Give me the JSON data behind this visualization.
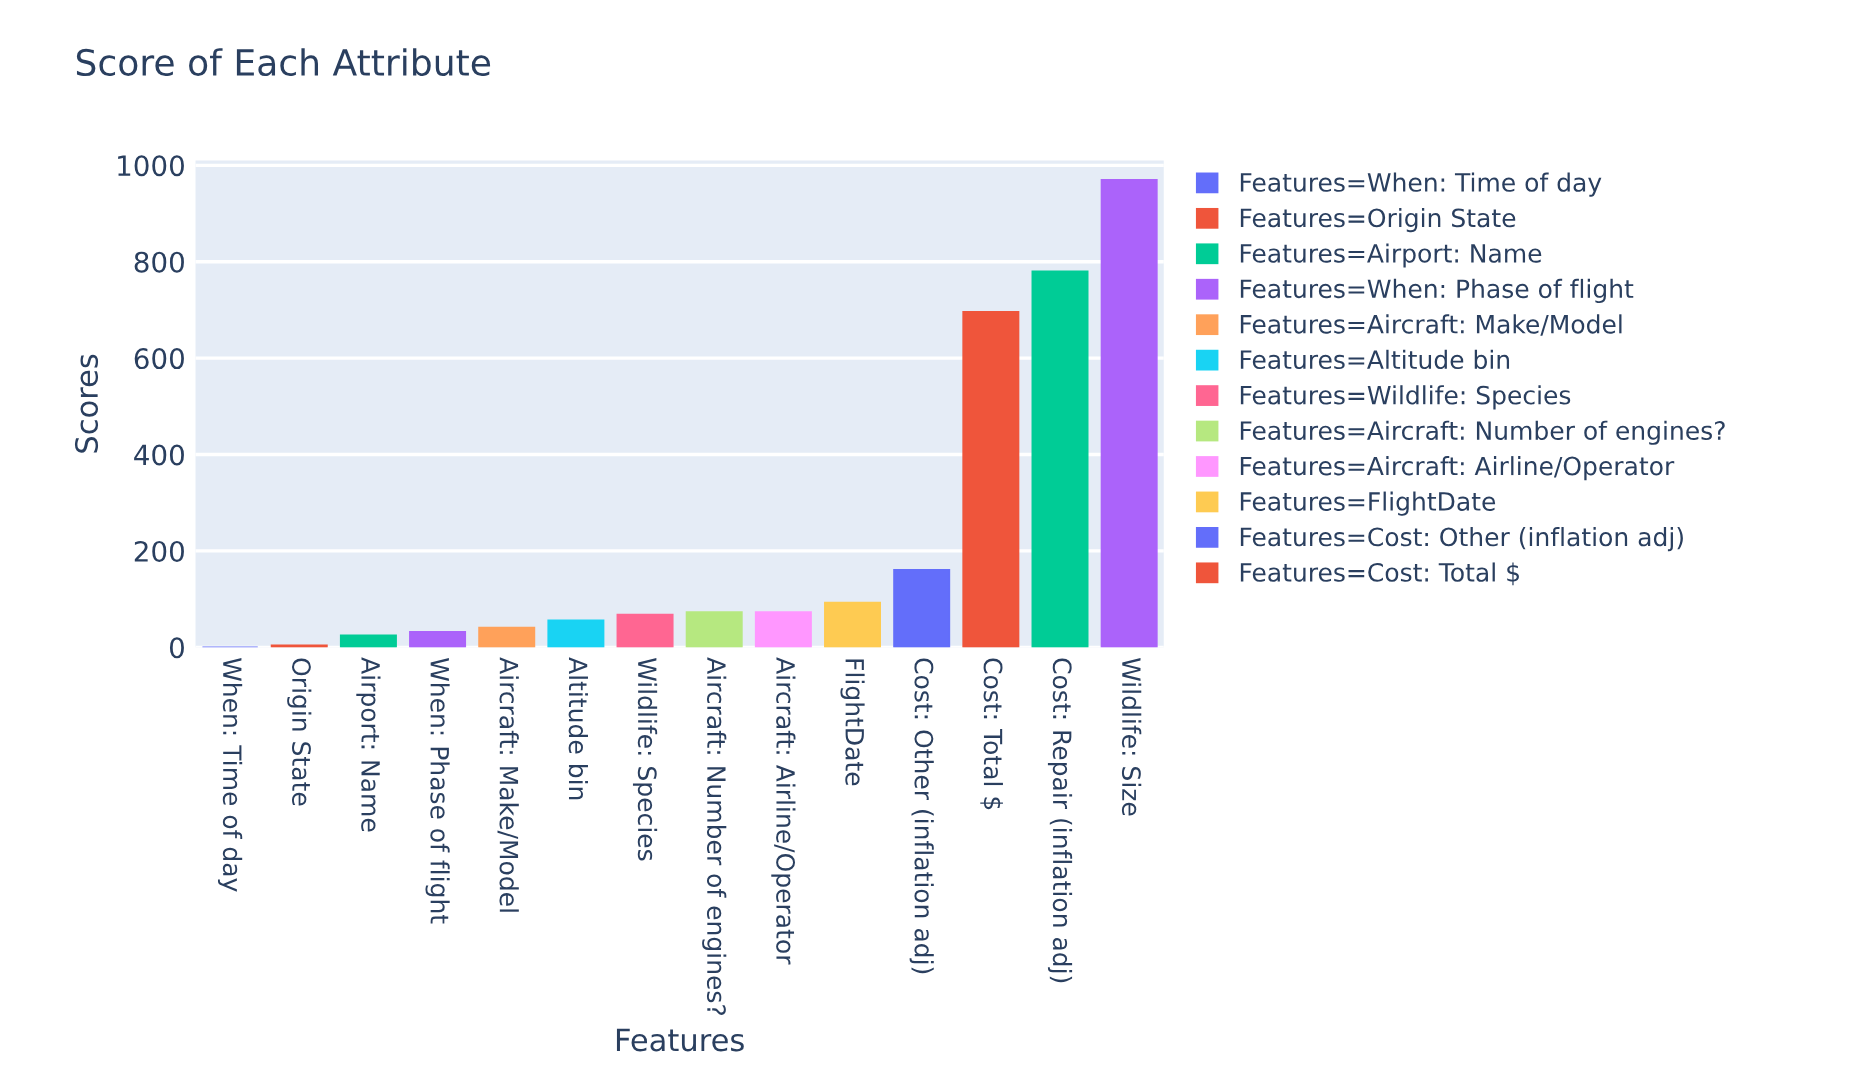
{
  "chart_data": {
    "type": "bar",
    "title": "Score of Each Attribute",
    "xlabel": "Features",
    "ylabel": "Scores",
    "categories": [
      "When: Time of day",
      "Origin State",
      "Airport: Name",
      "When: Phase of flight",
      "Aircraft: Make/Model",
      "Altitude bin",
      "Wildlife: Species",
      "Aircraft: Number of engines?",
      "Aircraft: Airline/Operator",
      "FlightDate",
      "Cost: Other (inflation adj)",
      "Cost: Total $",
      "Cost: Repair (inflation adj)",
      "Wildlife: Size"
    ],
    "series": [
      {
        "name": "Features=When: Time of day",
        "color": "#636efa",
        "values": [
          0,
          null,
          null,
          null,
          null,
          null,
          null,
          null,
          null,
          null,
          null,
          null,
          null,
          null
        ]
      },
      {
        "name": "Features=Origin State",
        "color": "#ef553b",
        "values": [
          null,
          4,
          null,
          null,
          null,
          null,
          null,
          null,
          null,
          null,
          null,
          null,
          null,
          null
        ]
      },
      {
        "name": "Features=Airport: Name",
        "color": "#00cc96",
        "values": [
          null,
          null,
          25,
          null,
          null,
          null,
          null,
          null,
          null,
          null,
          null,
          null,
          null,
          null
        ]
      },
      {
        "name": "Features=When: Phase of flight",
        "color": "#ab63fa",
        "values": [
          null,
          null,
          null,
          32,
          null,
          null,
          null,
          null,
          null,
          null,
          null,
          null,
          null,
          null
        ]
      },
      {
        "name": "Features=Aircraft: Make/Model",
        "color": "#ffa15a",
        "values": [
          null,
          null,
          null,
          null,
          41,
          null,
          null,
          null,
          null,
          null,
          null,
          null,
          null,
          null
        ]
      },
      {
        "name": "Features=Altitude bin",
        "color": "#19d3f3",
        "values": [
          null,
          null,
          null,
          null,
          null,
          56,
          null,
          null,
          null,
          null,
          null,
          null,
          null,
          null
        ]
      },
      {
        "name": "Features=Wildlife: Species",
        "color": "#ff6692",
        "values": [
          null,
          null,
          null,
          null,
          null,
          null,
          68,
          null,
          null,
          null,
          null,
          null,
          null,
          null
        ]
      },
      {
        "name": "Features=Aircraft: Number of engines?",
        "color": "#b6e880",
        "values": [
          null,
          null,
          null,
          null,
          null,
          null,
          null,
          73,
          null,
          null,
          null,
          null,
          null,
          null
        ]
      },
      {
        "name": "Features=Aircraft: Airline/Operator",
        "color": "#ff97ff",
        "values": [
          null,
          null,
          null,
          null,
          null,
          null,
          null,
          null,
          73,
          null,
          null,
          null,
          null,
          null
        ]
      },
      {
        "name": "Features=FlightDate",
        "color": "#fecb52",
        "values": [
          null,
          null,
          null,
          null,
          null,
          null,
          null,
          null,
          null,
          93,
          null,
          null,
          null,
          null
        ]
      },
      {
        "name": "Features=Cost: Other (inflation adj)",
        "color": "#636efa",
        "values": [
          null,
          null,
          null,
          null,
          null,
          null,
          null,
          null,
          null,
          null,
          161,
          null,
          null,
          null
        ]
      },
      {
        "name": "Features=Cost: Total $",
        "color": "#ef553b",
        "values": [
          null,
          null,
          null,
          null,
          null,
          null,
          null,
          null,
          null,
          null,
          null,
          696,
          null,
          null
        ]
      },
      {
        "color": "#00cc96",
        "values": [
          null,
          null,
          null,
          null,
          null,
          null,
          null,
          null,
          null,
          null,
          null,
          null,
          780,
          null
        ]
      },
      {
        "color": "#ab63fa",
        "values": [
          null,
          null,
          null,
          null,
          null,
          null,
          null,
          null,
          null,
          null,
          null,
          null,
          null,
          970
        ]
      }
    ],
    "ylim": [
      0,
      1010
    ],
    "yticks": [
      0,
      200,
      400,
      600,
      800,
      1000
    ],
    "grid": "y",
    "legend": "right"
  }
}
